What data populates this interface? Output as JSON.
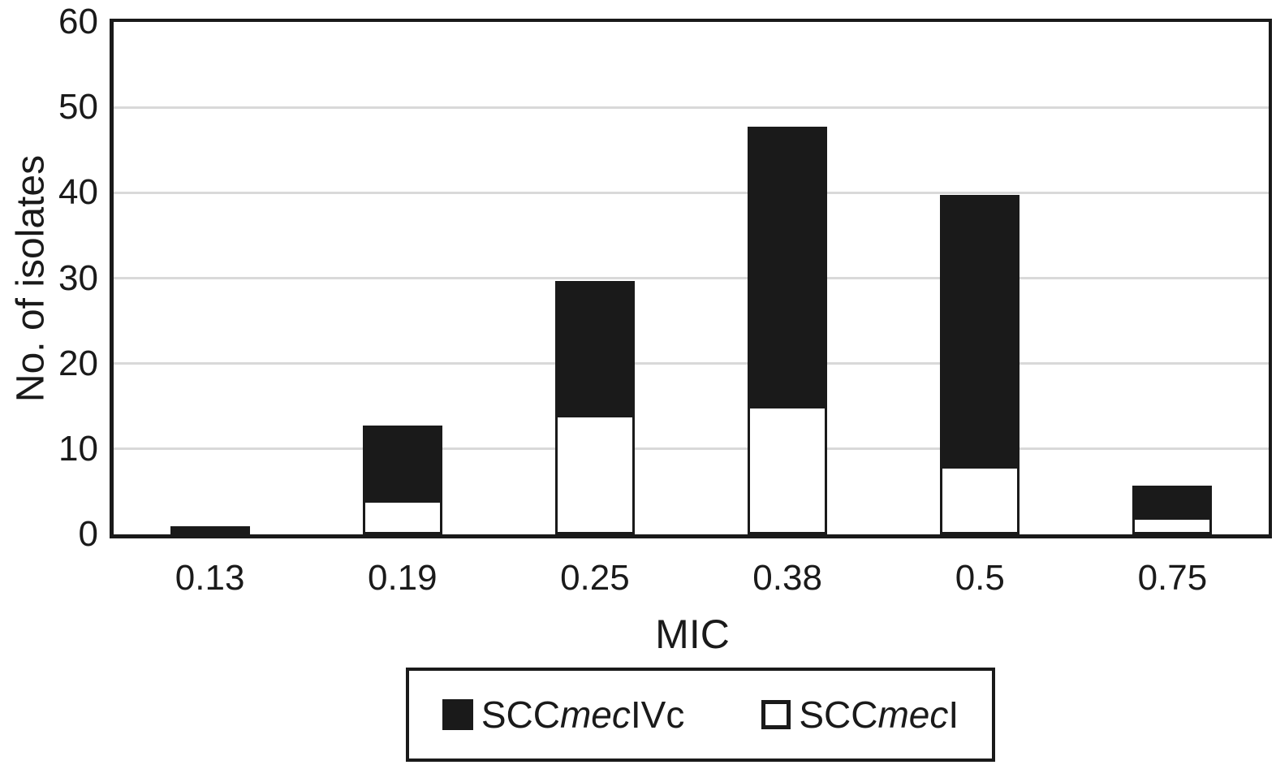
{
  "figure": {
    "background": "#ffffff"
  },
  "colors": {
    "bar_black": "#1a1a1a",
    "bar_white": "#ffffff",
    "gridline": "#d9d9d9",
    "axis": "#1a1a1a"
  },
  "legend": {
    "items": [
      {
        "series": "SCCmecIVc",
        "swatch": "filled-black-square",
        "prefix": "SCC",
        "italic": "mec",
        "suffix": "IVc"
      },
      {
        "series": "SCCmecI",
        "swatch": "open-white-square",
        "prefix": "SCC",
        "italic": "mec",
        "suffix": "I"
      }
    ]
  },
  "chart_data": {
    "type": "bar",
    "stacked": true,
    "title": "",
    "xlabel": "MIC",
    "ylabel": "No. of isolates",
    "categories": [
      "0.13",
      "0.19",
      "0.25",
      "0.38",
      "0.5",
      "0.75"
    ],
    "series": [
      {
        "name": "SCCmecI",
        "color": "#ffffff",
        "values": [
          0,
          4,
          14,
          15,
          8,
          2
        ]
      },
      {
        "name": "SCCmecIVc",
        "color": "#1a1a1a",
        "values": [
          1,
          9,
          16,
          33,
          32,
          4
        ]
      }
    ],
    "totals": [
      1,
      13,
      30,
      48,
      40,
      6
    ],
    "ylim": [
      0,
      60
    ],
    "yticks": [
      0,
      10,
      20,
      30,
      40,
      50,
      60
    ],
    "grid": true,
    "legend_position": "bottom"
  }
}
